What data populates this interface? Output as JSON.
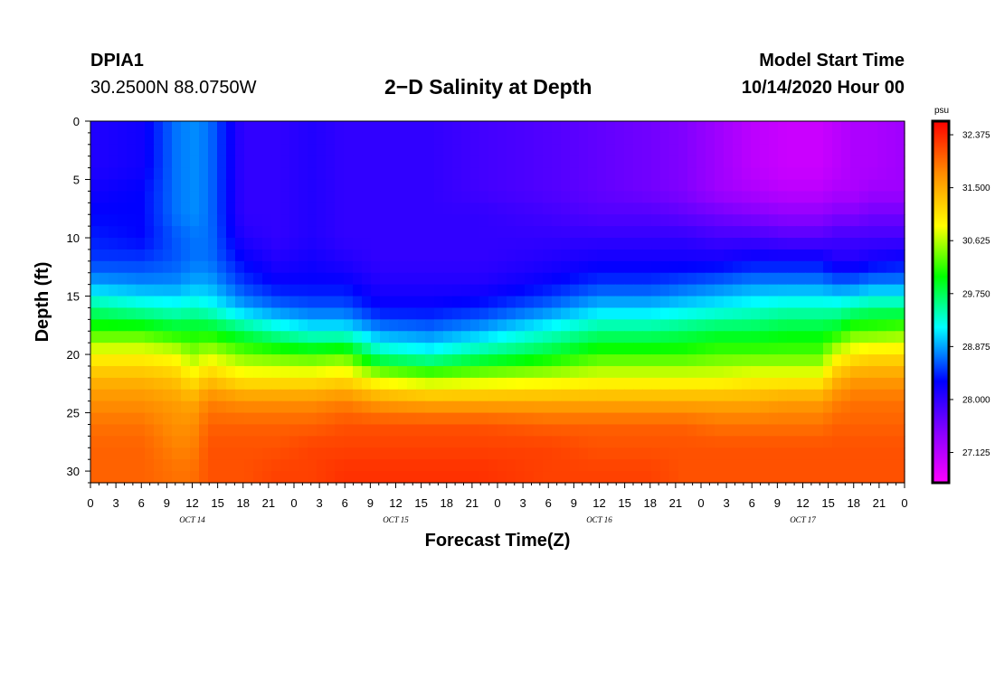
{
  "header": {
    "station_id": "DPIA1",
    "coordinates": "30.2500N 88.0750W",
    "title": "2−D Salinity at Depth",
    "model_start_label": "Model Start Time",
    "model_start_value": "10/14/2020 Hour 00"
  },
  "chart_data": {
    "type": "heatmap",
    "title": "2−D Salinity at Depth",
    "xlabel": "Forecast Time(Z)",
    "ylabel": "Depth (ft)",
    "x_range_hours": [
      0,
      96
    ],
    "ylim": [
      0,
      31
    ],
    "x_tick_labels": [
      "0",
      "3",
      "6",
      "9",
      "12",
      "15",
      "18",
      "21",
      "0",
      "3",
      "6",
      "9",
      "12",
      "15",
      "18",
      "21",
      "0",
      "3",
      "6",
      "9",
      "12",
      "15",
      "18",
      "21",
      "0",
      "3",
      "6",
      "9",
      "12",
      "15",
      "18",
      "21",
      "0"
    ],
    "y_tick_labels": [
      "0",
      "5",
      "10",
      "15",
      "20",
      "25",
      "30"
    ],
    "y_ticks": [
      0,
      5,
      10,
      15,
      20,
      25,
      30
    ],
    "day_labels": [
      {
        "label": "OCT 14",
        "hour": 12
      },
      {
        "label": "OCT 15",
        "hour": 36
      },
      {
        "label": "OCT 16",
        "hour": 60
      },
      {
        "label": "OCT 17",
        "hour": 84
      }
    ],
    "colorbar": {
      "unit": "psu",
      "min": 26.625,
      "max": 32.6,
      "labels": [
        "32.375",
        "31.500",
        "30.625",
        "29.750",
        "28.875",
        "28.000",
        "27.125"
      ],
      "values": [
        32.375,
        31.5,
        30.625,
        29.75,
        28.875,
        28.0,
        27.125
      ]
    },
    "profiles": {
      "hours": [
        0,
        6,
        10,
        12,
        14,
        18,
        22,
        26,
        30,
        34,
        40,
        46,
        54,
        60,
        66,
        70,
        74,
        78,
        82,
        86,
        88,
        90,
        92,
        96
      ],
      "depth_ft": [
        0,
        2,
        4,
        6,
        8,
        10,
        12,
        14,
        16,
        18,
        20,
        22,
        24,
        26,
        28,
        30,
        31
      ],
      "salinity_psu": [
        [
          28.1,
          28.1,
          28.1,
          28.2,
          28.3,
          28.4,
          28.5,
          28.9,
          29.6,
          30.2,
          30.9,
          31.4,
          31.7,
          31.9,
          32.0,
          32.0,
          32.0
        ],
        [
          28.2,
          28.2,
          28.2,
          28.3,
          28.3,
          28.3,
          28.5,
          28.8,
          29.4,
          30.2,
          30.9,
          31.4,
          31.7,
          31.9,
          32.0,
          32.0,
          32.0
        ],
        [
          28.7,
          28.7,
          28.7,
          28.7,
          28.7,
          28.6,
          28.6,
          28.8,
          29.3,
          30.0,
          30.8,
          31.3,
          31.6,
          31.7,
          31.8,
          31.9,
          31.9
        ],
        [
          28.8,
          28.8,
          28.8,
          28.8,
          28.8,
          28.7,
          28.7,
          28.9,
          29.4,
          30.0,
          30.5,
          31.0,
          31.5,
          31.7,
          31.8,
          31.9,
          31.9
        ],
        [
          28.7,
          28.7,
          28.7,
          28.7,
          28.7,
          28.7,
          28.7,
          28.9,
          29.3,
          30.0,
          30.7,
          31.3,
          31.8,
          32.0,
          32.1,
          32.1,
          32.1
        ],
        [
          28.0,
          28.0,
          28.0,
          28.0,
          28.0,
          28.1,
          28.3,
          28.5,
          28.9,
          29.7,
          30.4,
          31.0,
          31.7,
          32.0,
          32.1,
          32.1,
          32.1
        ],
        [
          28.0,
          28.0,
          28.0,
          28.0,
          28.0,
          28.0,
          28.1,
          28.3,
          28.7,
          29.4,
          30.3,
          31.0,
          31.7,
          32.0,
          32.1,
          32.2,
          32.2
        ],
        [
          28.1,
          28.1,
          28.1,
          28.1,
          28.1,
          28.1,
          28.2,
          28.3,
          28.6,
          29.2,
          30.2,
          31.0,
          31.7,
          32.0,
          32.2,
          32.2,
          32.2
        ],
        [
          28.0,
          28.0,
          28.0,
          28.0,
          28.0,
          28.0,
          28.1,
          28.3,
          28.6,
          29.2,
          30.3,
          31.1,
          31.8,
          32.1,
          32.2,
          32.3,
          32.3
        ],
        [
          28.0,
          28.0,
          28.0,
          28.0,
          28.0,
          28.0,
          28.0,
          28.1,
          28.3,
          28.8,
          29.5,
          30.7,
          31.6,
          32.1,
          32.2,
          32.3,
          32.3
        ],
        [
          28.0,
          28.0,
          28.0,
          28.0,
          28.0,
          28.0,
          28.0,
          28.1,
          28.3,
          28.7,
          29.3,
          30.5,
          31.5,
          32.1,
          32.2,
          32.3,
          32.3
        ],
        [
          27.9,
          27.9,
          27.9,
          27.9,
          28.0,
          28.0,
          28.0,
          28.1,
          28.4,
          28.9,
          29.6,
          30.6,
          31.5,
          32.1,
          32.2,
          32.3,
          32.3
        ],
        [
          27.8,
          27.8,
          27.8,
          27.8,
          27.9,
          28.0,
          28.1,
          28.3,
          28.7,
          29.3,
          29.9,
          30.7,
          31.5,
          32.0,
          32.2,
          32.2,
          32.2
        ],
        [
          27.7,
          27.7,
          27.7,
          27.7,
          27.8,
          28.0,
          28.2,
          28.5,
          29.0,
          29.6,
          30.2,
          30.8,
          31.5,
          32.0,
          32.1,
          32.2,
          32.2
        ],
        [
          27.6,
          27.6,
          27.6,
          27.6,
          27.8,
          28.0,
          28.2,
          28.5,
          29.0,
          29.6,
          30.2,
          30.8,
          31.5,
          32.0,
          32.1,
          32.2,
          32.2
        ],
        [
          27.5,
          27.5,
          27.5,
          27.5,
          27.7,
          28.0,
          28.2,
          28.6,
          29.1,
          29.7,
          30.2,
          30.8,
          31.5,
          32.0,
          32.1,
          32.1,
          32.1
        ],
        [
          27.3,
          27.3,
          27.3,
          27.3,
          27.6,
          27.9,
          28.2,
          28.7,
          29.2,
          29.8,
          30.3,
          30.8,
          31.5,
          31.9,
          32.1,
          32.1,
          32.1
        ],
        [
          27.1,
          27.1,
          27.1,
          27.2,
          27.5,
          27.9,
          28.3,
          28.8,
          29.3,
          29.8,
          30.3,
          30.9,
          31.5,
          31.9,
          32.1,
          32.1,
          32.1
        ],
        [
          27.0,
          27.0,
          27.0,
          27.1,
          27.4,
          27.8,
          28.3,
          28.8,
          29.4,
          29.9,
          30.3,
          30.9,
          31.6,
          31.9,
          32.1,
          32.1,
          32.1
        ],
        [
          27.0,
          27.0,
          27.0,
          27.1,
          27.4,
          27.8,
          28.3,
          28.8,
          29.4,
          29.9,
          30.3,
          30.9,
          31.6,
          31.9,
          32.1,
          32.1,
          32.1
        ],
        [
          27.1,
          27.1,
          27.1,
          27.2,
          27.5,
          27.9,
          28.1,
          28.7,
          29.4,
          30.0,
          30.8,
          31.4,
          31.8,
          32.0,
          32.1,
          32.1,
          32.1
        ],
        [
          27.2,
          27.2,
          27.2,
          27.2,
          27.5,
          27.9,
          28.1,
          28.7,
          29.5,
          30.3,
          31.0,
          31.6,
          31.9,
          32.0,
          32.1,
          32.1,
          32.1
        ],
        [
          27.2,
          27.2,
          27.2,
          27.3,
          27.6,
          27.9,
          28.2,
          28.8,
          29.6,
          30.3,
          31.1,
          31.6,
          31.9,
          32.0,
          32.1,
          32.1,
          32.1
        ],
        [
          27.3,
          27.3,
          27.3,
          27.3,
          27.6,
          27.9,
          28.3,
          28.8,
          29.6,
          30.4,
          31.1,
          31.6,
          31.9,
          32.0,
          32.1,
          32.1,
          32.1
        ]
      ]
    }
  }
}
